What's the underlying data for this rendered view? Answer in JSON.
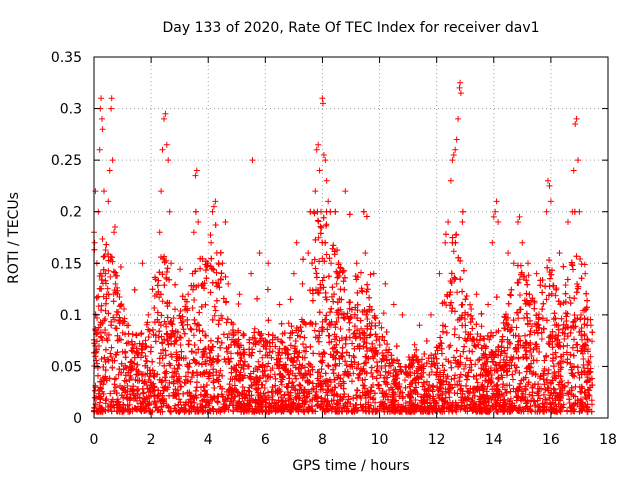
{
  "chart_data": {
    "type": "scatter",
    "title": "Day 133 of 2020, Rate Of TEC Index for receiver dav1",
    "xlabel": "GPS time / hours",
    "ylabel": "ROTI / TECUs",
    "xlim": [
      0,
      18
    ],
    "ylim": [
      0,
      0.35
    ],
    "x_ticks": [
      0,
      2,
      4,
      6,
      8,
      10,
      12,
      14,
      16,
      18
    ],
    "x_tick_labels": [
      "0",
      "2",
      "4",
      "6",
      "8",
      "10",
      "12",
      "14",
      "16",
      "18"
    ],
    "y_ticks": [
      0,
      0.05,
      0.1,
      0.15,
      0.2,
      0.25,
      0.3,
      0.35
    ],
    "y_tick_labels": [
      "0",
      "0.05",
      "0.1",
      "0.15",
      "0.2",
      "0.25",
      "0.3",
      "0.35"
    ],
    "grid": true,
    "marker": "plus",
    "color": "#ff0000",
    "data_end_hours": 17.45,
    "series": [
      {
        "points": [
          [
            0.0,
            0.18
          ],
          [
            0.02,
            0.17
          ],
          [
            0.05,
            0.22
          ],
          [
            0.1,
            0.15
          ],
          [
            0.15,
            0.2
          ],
          [
            0.2,
            0.26
          ],
          [
            0.22,
            0.3
          ],
          [
            0.25,
            0.31
          ],
          [
            0.28,
            0.29
          ],
          [
            0.3,
            0.28
          ],
          [
            0.35,
            0.22
          ],
          [
            0.4,
            0.14
          ],
          [
            0.45,
            0.12
          ],
          [
            0.5,
            0.21
          ],
          [
            0.55,
            0.24
          ],
          [
            0.6,
            0.3
          ],
          [
            0.62,
            0.31
          ],
          [
            0.65,
            0.25
          ],
          [
            0.7,
            0.18
          ],
          [
            0.75,
            0.13
          ],
          [
            0.8,
            0.1
          ],
          [
            1.2,
            0.09
          ],
          [
            1.5,
            0.08
          ],
          [
            1.7,
            0.15
          ],
          [
            1.9,
            0.1
          ],
          [
            2.2,
            0.12
          ],
          [
            2.3,
            0.18
          ],
          [
            2.35,
            0.22
          ],
          [
            2.4,
            0.26
          ],
          [
            2.45,
            0.29
          ],
          [
            2.5,
            0.295
          ],
          [
            2.55,
            0.265
          ],
          [
            2.6,
            0.25
          ],
          [
            2.65,
            0.2
          ],
          [
            2.7,
            0.15
          ],
          [
            3.1,
            0.09
          ],
          [
            3.3,
            0.12
          ],
          [
            3.45,
            0.14
          ],
          [
            3.5,
            0.18
          ],
          [
            3.55,
            0.235
          ],
          [
            3.6,
            0.24
          ],
          [
            3.65,
            0.19
          ],
          [
            3.8,
            0.13
          ],
          [
            4.1,
            0.17
          ],
          [
            4.15,
            0.2
          ],
          [
            4.2,
            0.205
          ],
          [
            4.25,
            0.21
          ],
          [
            4.3,
            0.16
          ],
          [
            4.5,
            0.15
          ],
          [
            4.6,
            0.19
          ],
          [
            4.7,
            0.13
          ],
          [
            5.1,
            0.12
          ],
          [
            5.5,
            0.14
          ],
          [
            5.55,
            0.25
          ],
          [
            5.8,
            0.16
          ],
          [
            6.1,
            0.15
          ],
          [
            6.5,
            0.11
          ],
          [
            7.0,
            0.14
          ],
          [
            7.1,
            0.17
          ],
          [
            7.3,
            0.13
          ],
          [
            7.5,
            0.16
          ],
          [
            7.7,
            0.2
          ],
          [
            7.75,
            0.22
          ],
          [
            7.8,
            0.26
          ],
          [
            7.85,
            0.265
          ],
          [
            7.9,
            0.24
          ],
          [
            7.95,
            0.2
          ],
          [
            8.0,
            0.31
          ],
          [
            8.02,
            0.305
          ],
          [
            8.05,
            0.255
          ],
          [
            8.1,
            0.25
          ],
          [
            8.15,
            0.23
          ],
          [
            8.2,
            0.21
          ],
          [
            8.3,
            0.15
          ],
          [
            8.5,
            0.13
          ],
          [
            8.8,
            0.22
          ],
          [
            9.2,
            0.15
          ],
          [
            9.5,
            0.16
          ],
          [
            9.8,
            0.14
          ],
          [
            10.2,
            0.13
          ],
          [
            10.5,
            0.11
          ],
          [
            10.8,
            0.1
          ],
          [
            11.4,
            0.09
          ],
          [
            11.8,
            0.1
          ],
          [
            12.1,
            0.14
          ],
          [
            12.3,
            0.17
          ],
          [
            12.4,
            0.19
          ],
          [
            12.5,
            0.23
          ],
          [
            12.55,
            0.25
          ],
          [
            12.6,
            0.255
          ],
          [
            12.65,
            0.26
          ],
          [
            12.7,
            0.27
          ],
          [
            12.75,
            0.29
          ],
          [
            12.8,
            0.32
          ],
          [
            12.82,
            0.325
          ],
          [
            12.85,
            0.315
          ],
          [
            12.9,
            0.19
          ],
          [
            13.4,
            0.12
          ],
          [
            13.8,
            0.11
          ],
          [
            13.95,
            0.17
          ],
          [
            14.0,
            0.195
          ],
          [
            14.05,
            0.2
          ],
          [
            14.1,
            0.21
          ],
          [
            14.15,
            0.19
          ],
          [
            14.5,
            0.16
          ],
          [
            14.7,
            0.15
          ],
          [
            14.85,
            0.19
          ],
          [
            14.9,
            0.195
          ],
          [
            15.0,
            0.17
          ],
          [
            15.2,
            0.15
          ],
          [
            15.5,
            0.14
          ],
          [
            15.85,
            0.2
          ],
          [
            15.9,
            0.23
          ],
          [
            15.95,
            0.225
          ],
          [
            16.0,
            0.21
          ],
          [
            16.3,
            0.16
          ],
          [
            16.6,
            0.19
          ],
          [
            16.75,
            0.2
          ],
          [
            16.8,
            0.24
          ],
          [
            16.85,
            0.285
          ],
          [
            16.9,
            0.29
          ],
          [
            16.95,
            0.25
          ],
          [
            17.0,
            0.2
          ],
          [
            17.2,
            0.14
          ],
          [
            17.4,
            0.09
          ]
        ]
      }
    ]
  }
}
